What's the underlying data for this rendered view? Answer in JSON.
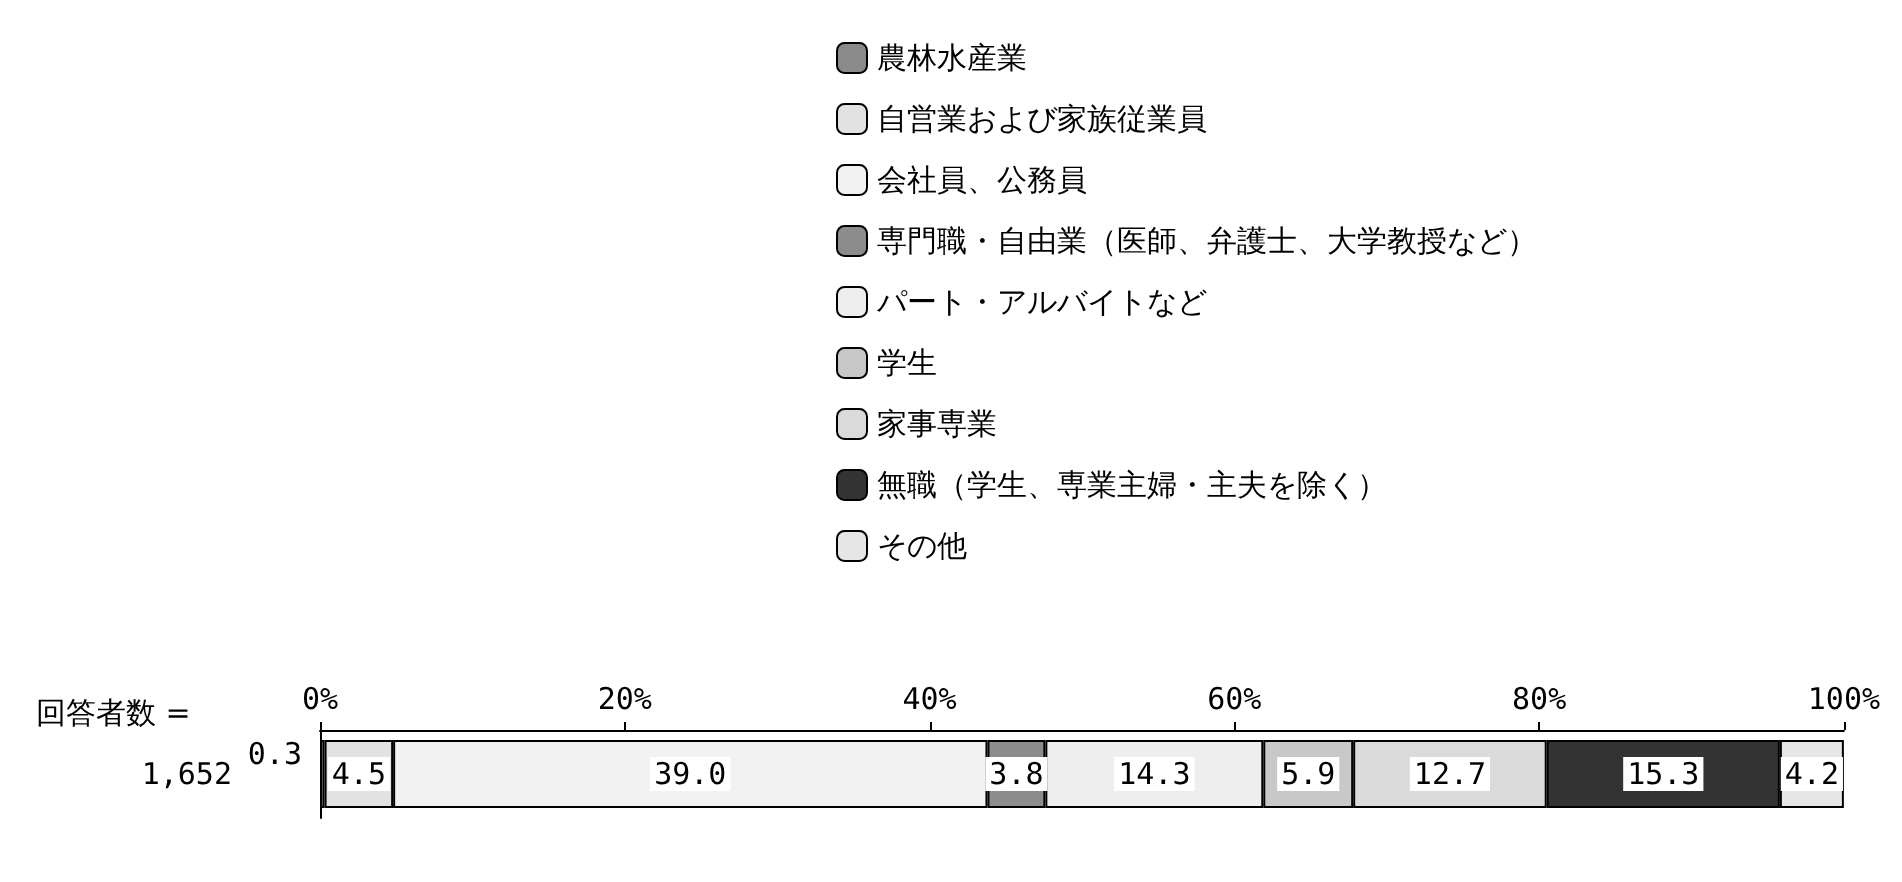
{
  "chart_data": {
    "type": "bar",
    "orientation": "horizontal",
    "stacked": true,
    "ylabel": "回答者数 =",
    "categories": [
      "1,652"
    ],
    "series": [
      {
        "name": "農林水産業",
        "color": "#8a8a8a",
        "values": [
          0.3
        ],
        "value_labels": [
          "0.3"
        ]
      },
      {
        "name": "自営業および家族従業員",
        "color": "#e2e2e2",
        "values": [
          4.5
        ],
        "value_labels": [
          "4.5"
        ]
      },
      {
        "name": "会社員、公務員",
        "color": "#f2f2f2",
        "values": [
          39.0
        ],
        "value_labels": [
          "39.0"
        ]
      },
      {
        "name": "専門職・自由業（医師、弁護士、大学教授など）",
        "color": "#8c8c8c",
        "values": [
          3.8
        ],
        "value_labels": [
          "3.8"
        ]
      },
      {
        "name": "パート・アルバイトなど",
        "color": "#eeeeee",
        "values": [
          14.3
        ],
        "value_labels": [
          "14.3"
        ]
      },
      {
        "name": "学生",
        "color": "#c8c8c8",
        "values": [
          5.9
        ],
        "value_labels": [
          "5.9"
        ]
      },
      {
        "name": "家事専業",
        "color": "#dadada",
        "values": [
          12.7
        ],
        "value_labels": [
          "12.7"
        ]
      },
      {
        "name": "無職（学生、専業主婦・主夫を除く）",
        "color": "#333333",
        "values": [
          15.3
        ],
        "value_labels": [
          "15.3"
        ]
      },
      {
        "name": "その他",
        "color": "#e6e6e6",
        "values": [
          4.2
        ],
        "value_labels": [
          "4.2"
        ]
      }
    ],
    "xlim": [
      0,
      100
    ],
    "xticks": [
      {
        "value": 0,
        "label": "0%"
      },
      {
        "value": 20,
        "label": "20%"
      },
      {
        "value": 40,
        "label": "40%"
      },
      {
        "value": 60,
        "label": "60%"
      },
      {
        "value": 80,
        "label": "80%"
      },
      {
        "value": 100,
        "label": "100%"
      }
    ],
    "legend": "top",
    "grid": false
  }
}
